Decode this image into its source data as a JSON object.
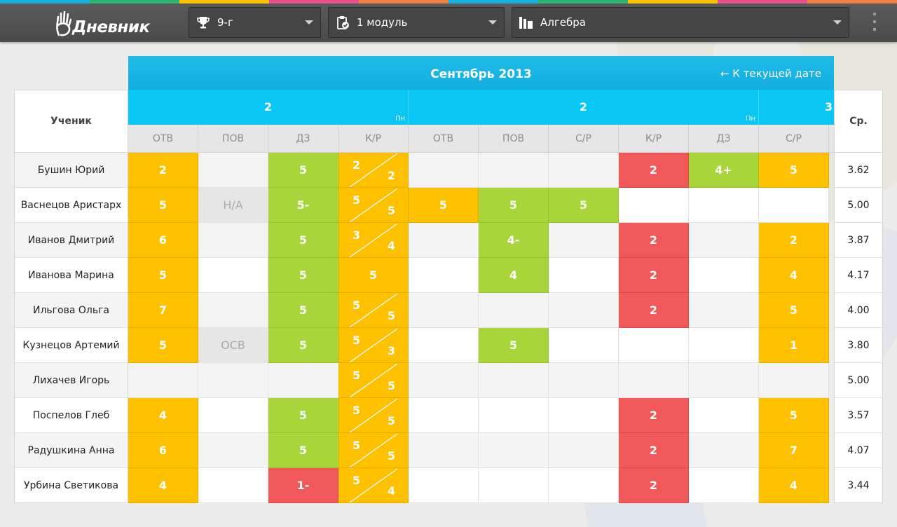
{
  "app": {
    "logo_text": "Дневник"
  },
  "stripe_colors": [
    "#14b2e2",
    "#2bb673",
    "#fec100",
    "#e94f8b",
    "#f08043",
    "#14b2e2",
    "#2bb673",
    "#fec100",
    "#e94f8b",
    "#f08043"
  ],
  "toolbar": {
    "class_select": {
      "value": "9-г",
      "icon": "trophy-icon"
    },
    "period_select": {
      "value": "1 модуль",
      "icon": "clipboard-check-icon"
    },
    "subject_select": {
      "value": "Алгебра",
      "icon": "books-icon"
    }
  },
  "journal": {
    "month_label": "Сентябрь 2013",
    "back_link": "← К текущей дате",
    "student_header": "Ученик",
    "avg_header": "Ср.",
    "days": [
      {
        "num": "2",
        "weekday": "Пн",
        "span": 4
      },
      {
        "num": "2",
        "weekday": "Пн",
        "span": 5
      },
      {
        "num": "3",
        "weekday": "",
        "span": 2
      }
    ],
    "columns": [
      "ОТВ",
      "ПОВ",
      "ДЗ",
      "К/Р",
      "ОТВ",
      "ПОВ",
      "С/Р",
      "К/Р",
      "ДЗ",
      "С/Р"
    ],
    "students": [
      {
        "name": "Бушин Юрий",
        "avg": "3.62",
        "marks": [
          [
            "y",
            "2"
          ],
          [
            "ea",
            ""
          ],
          [
            "g",
            "5"
          ],
          [
            "yd",
            "2",
            "2"
          ],
          [
            "ea",
            ""
          ],
          [
            "ea",
            ""
          ],
          [
            "ea",
            ""
          ],
          [
            "r",
            "2"
          ],
          [
            "g",
            "4+"
          ],
          [
            "y",
            "5"
          ]
        ]
      },
      {
        "name": "Васнецов Аристарх",
        "avg": "5.00",
        "marks": [
          [
            "y",
            "5"
          ],
          [
            "n",
            "Н/А"
          ],
          [
            "g",
            "5-"
          ],
          [
            "yd",
            "5",
            "5"
          ],
          [
            "y",
            "5"
          ],
          [
            "g",
            "5"
          ],
          [
            "g",
            "5"
          ],
          [
            "e",
            ""
          ],
          [
            "e",
            ""
          ],
          [
            "e",
            ""
          ]
        ]
      },
      {
        "name": "Иванов Дмитрий",
        "avg": "3.87",
        "marks": [
          [
            "y",
            "6"
          ],
          [
            "ea",
            ""
          ],
          [
            "g",
            "5"
          ],
          [
            "yd",
            "3",
            "4"
          ],
          [
            "ea",
            ""
          ],
          [
            "g",
            "4-"
          ],
          [
            "ea",
            ""
          ],
          [
            "r",
            "2"
          ],
          [
            "ea",
            ""
          ],
          [
            "y",
            "2"
          ]
        ]
      },
      {
        "name": "Иванова Марина",
        "avg": "4.17",
        "marks": [
          [
            "y",
            "5"
          ],
          [
            "e",
            ""
          ],
          [
            "g",
            "5"
          ],
          [
            "y",
            "5"
          ],
          [
            "e",
            ""
          ],
          [
            "g",
            "4"
          ],
          [
            "e",
            ""
          ],
          [
            "r",
            "2"
          ],
          [
            "e",
            ""
          ],
          [
            "y",
            "4"
          ]
        ]
      },
      {
        "name": "Ильгова Ольга",
        "avg": "4.00",
        "marks": [
          [
            "y",
            "7"
          ],
          [
            "ea",
            ""
          ],
          [
            "g",
            "5"
          ],
          [
            "yd",
            "5",
            "5"
          ],
          [
            "ea",
            ""
          ],
          [
            "ea",
            ""
          ],
          [
            "ea",
            ""
          ],
          [
            "r",
            "2"
          ],
          [
            "ea",
            ""
          ],
          [
            "y",
            "5"
          ]
        ]
      },
      {
        "name": "Кузнецов Артемий",
        "avg": "3.80",
        "marks": [
          [
            "y",
            "5"
          ],
          [
            "n",
            "ОСВ"
          ],
          [
            "g",
            "5"
          ],
          [
            "yd",
            "5",
            "3"
          ],
          [
            "e",
            ""
          ],
          [
            "g",
            "5"
          ],
          [
            "e",
            ""
          ],
          [
            "e",
            ""
          ],
          [
            "e",
            ""
          ],
          [
            "y",
            "1"
          ]
        ]
      },
      {
        "name": "Лихачев Игорь",
        "avg": "5.00",
        "marks": [
          [
            "ea",
            ""
          ],
          [
            "ea",
            ""
          ],
          [
            "ea",
            ""
          ],
          [
            "yd",
            "5",
            "5"
          ],
          [
            "ea",
            ""
          ],
          [
            "ea",
            ""
          ],
          [
            "ea",
            ""
          ],
          [
            "ea",
            ""
          ],
          [
            "ea",
            ""
          ],
          [
            "ea",
            ""
          ]
        ]
      },
      {
        "name": "Поспелов Глеб",
        "avg": "3.57",
        "marks": [
          [
            "y",
            "4"
          ],
          [
            "e",
            ""
          ],
          [
            "g",
            "5"
          ],
          [
            "yd",
            "5",
            "5"
          ],
          [
            "e",
            ""
          ],
          [
            "e",
            ""
          ],
          [
            "e",
            ""
          ],
          [
            "r",
            "2"
          ],
          [
            "e",
            ""
          ],
          [
            "y",
            "5"
          ]
        ]
      },
      {
        "name": "Радушкина Анна",
        "avg": "4.07",
        "marks": [
          [
            "y",
            "6"
          ],
          [
            "ea",
            ""
          ],
          [
            "g",
            "5"
          ],
          [
            "yd",
            "5",
            "5"
          ],
          [
            "ea",
            ""
          ],
          [
            "ea",
            ""
          ],
          [
            "ea",
            ""
          ],
          [
            "r",
            "2"
          ],
          [
            "ea",
            ""
          ],
          [
            "y",
            "7"
          ]
        ]
      },
      {
        "name": "Урбина Светикова",
        "avg": "3.44",
        "marks": [
          [
            "y",
            "4"
          ],
          [
            "e",
            ""
          ],
          [
            "r",
            "1-"
          ],
          [
            "yd",
            "5",
            "4"
          ],
          [
            "e",
            ""
          ],
          [
            "e",
            ""
          ],
          [
            "e",
            ""
          ],
          [
            "r",
            "2"
          ],
          [
            "e",
            ""
          ],
          [
            "y",
            "4"
          ]
        ]
      }
    ]
  }
}
